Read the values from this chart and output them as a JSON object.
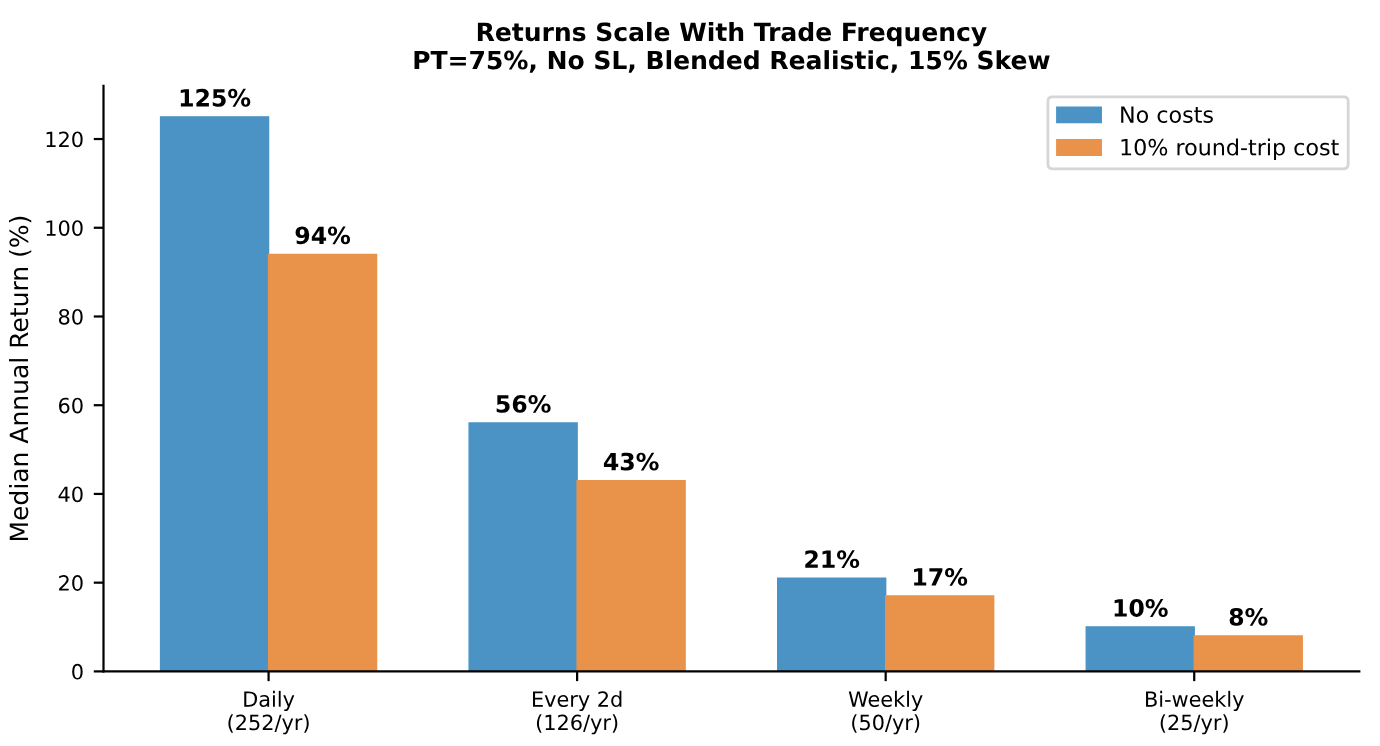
{
  "chart_data": {
    "type": "bar",
    "title": "Returns Scale With Trade Frequency\nPT=75%, No SL, Blended Realistic, 15% Skew",
    "ylabel": "Median Annual Return (%)",
    "categories": [
      "Daily\n(252/yr)",
      "Every 2d\n(126/yr)",
      "Weekly\n(50/yr)",
      "Bi-weekly\n(25/yr)"
    ],
    "series": [
      {
        "name": "No costs",
        "color": "#4a93c4",
        "values": [
          125,
          56,
          21,
          10
        ],
        "value_labels": [
          "125%",
          "56%",
          "21%",
          "10%"
        ]
      },
      {
        "name": "10% round-trip cost",
        "color": "#e8924a",
        "values": [
          94,
          43,
          17,
          8
        ],
        "value_labels": [
          "94%",
          "43%",
          "17%",
          "8%"
        ]
      }
    ],
    "ylim": [
      0,
      132
    ],
    "yticks": [
      0,
      20,
      40,
      60,
      80,
      100,
      120
    ],
    "grid": false,
    "legend": "top right"
  }
}
